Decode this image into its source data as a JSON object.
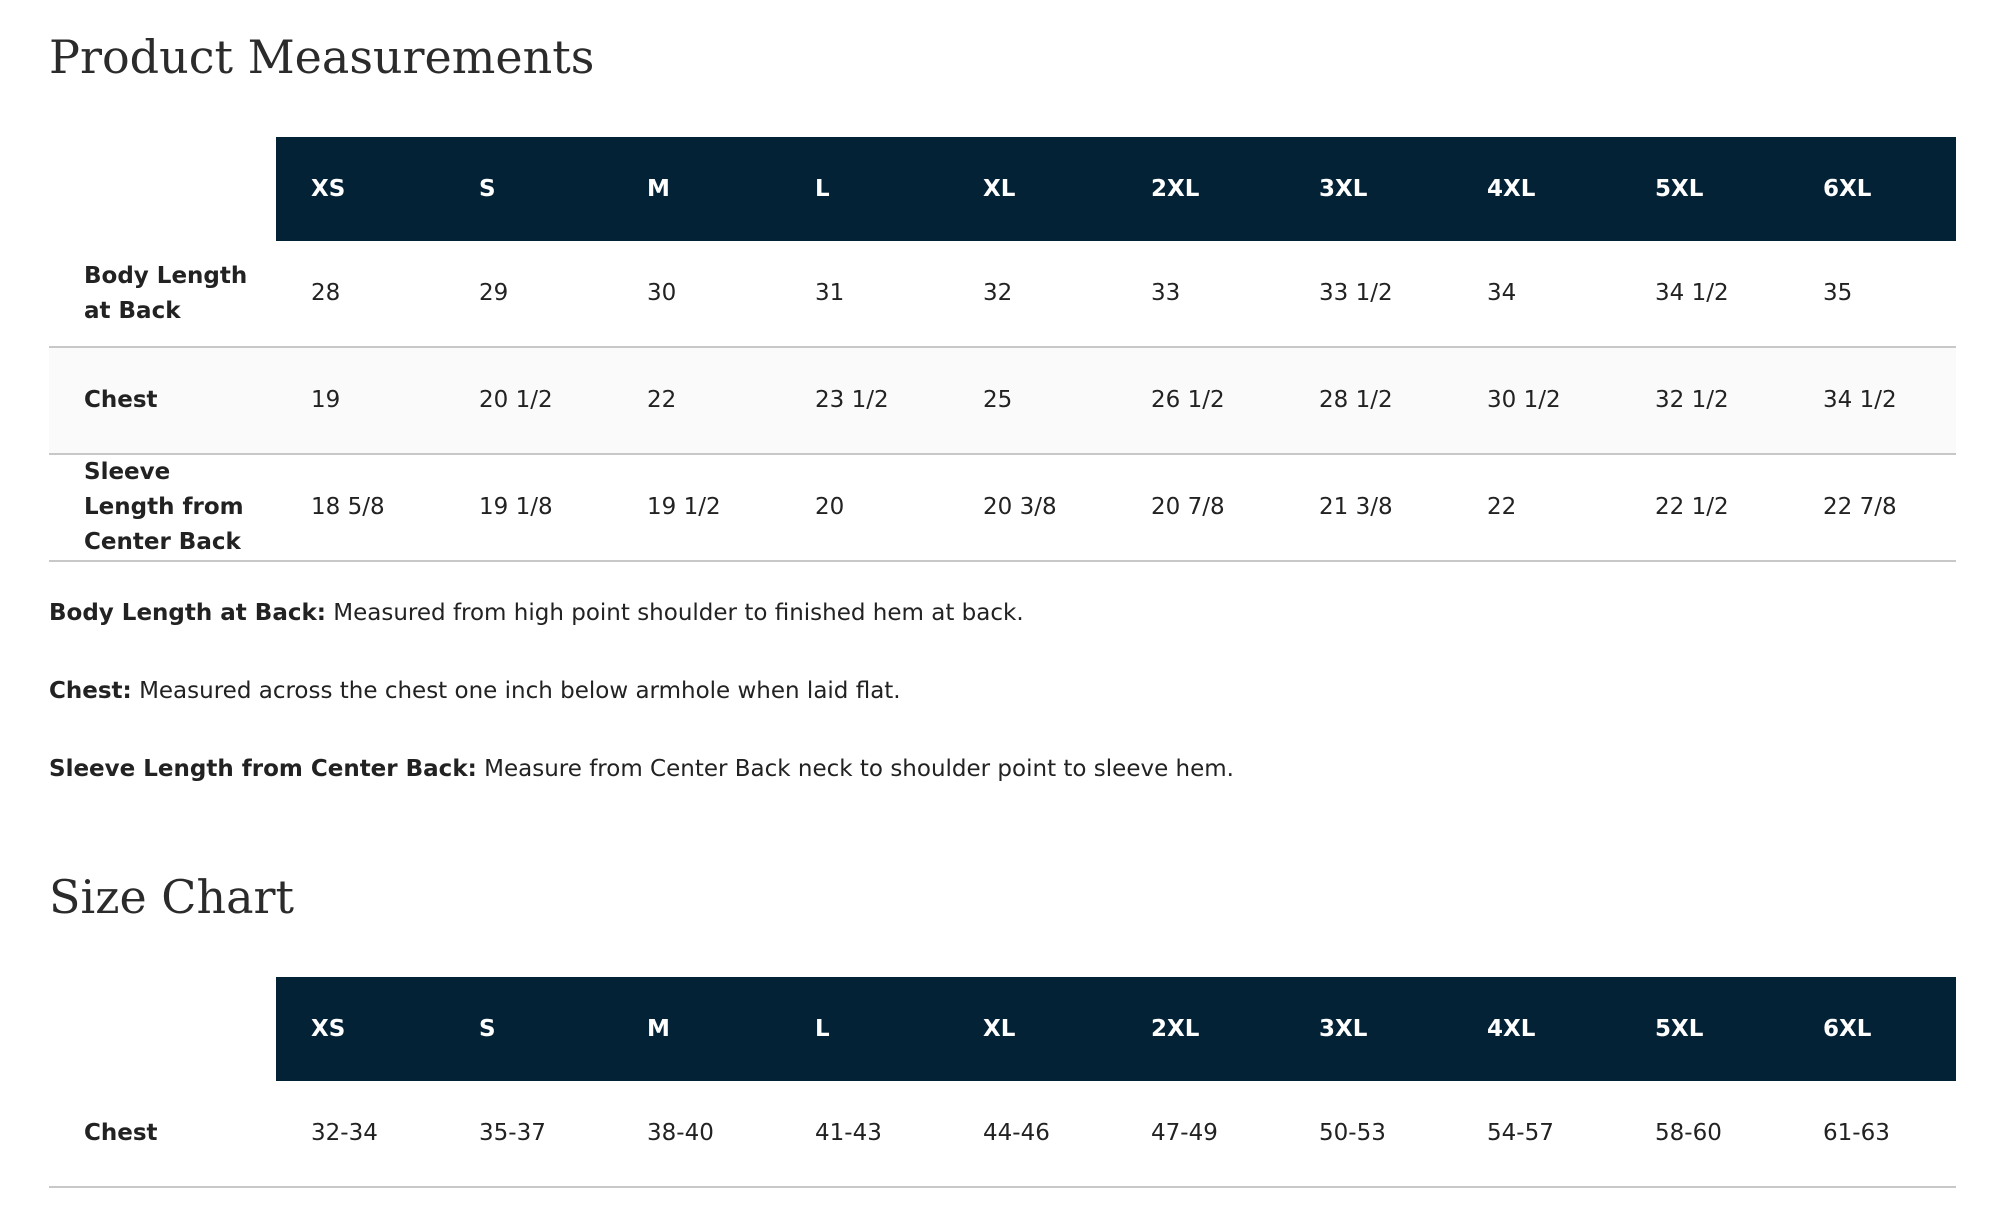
{
  "measurements": {
    "title": "Product Measurements",
    "sizes": [
      "XS",
      "S",
      "M",
      "L",
      "XL",
      "2XL",
      "3XL",
      "4XL",
      "5XL",
      "6XL"
    ],
    "rows": [
      {
        "label": "Body Length at Back",
        "values": [
          "28",
          "29",
          "30",
          "31",
          "32",
          "33",
          "33 1/2",
          "34",
          "34 1/2",
          "35"
        ]
      },
      {
        "label": "Chest",
        "values": [
          "19",
          "20 1/2",
          "22",
          "23 1/2",
          "25",
          "26 1/2",
          "28 1/2",
          "30 1/2",
          "32 1/2",
          "34 1/2"
        ]
      },
      {
        "label": "Sleeve Length from Center Back",
        "values": [
          "18 5/8",
          "19 1/8",
          "19 1/2",
          "20",
          "20 3/8",
          "20 7/8",
          "21 3/8",
          "22",
          "22 1/2",
          "22 7/8"
        ]
      }
    ]
  },
  "notes": [
    {
      "term": "Body Length at Back:",
      "text": "Measured from high point shoulder to finished hem at back."
    },
    {
      "term": "Chest:",
      "text": "Measured across the chest one inch below armhole when laid flat."
    },
    {
      "term": "Sleeve Length from Center Back:",
      "text": "Measure from Center Back neck to shoulder point to sleeve hem."
    }
  ],
  "size_chart": {
    "title": "Size Chart",
    "sizes": [
      "XS",
      "S",
      "M",
      "L",
      "XL",
      "2XL",
      "3XL",
      "4XL",
      "5XL",
      "6XL"
    ],
    "rows": [
      {
        "label": "Chest",
        "values": [
          "32-34",
          "35-37",
          "38-40",
          "41-43",
          "44-46",
          "47-49",
          "50-53",
          "54-57",
          "58-60",
          "61-63"
        ]
      }
    ]
  }
}
